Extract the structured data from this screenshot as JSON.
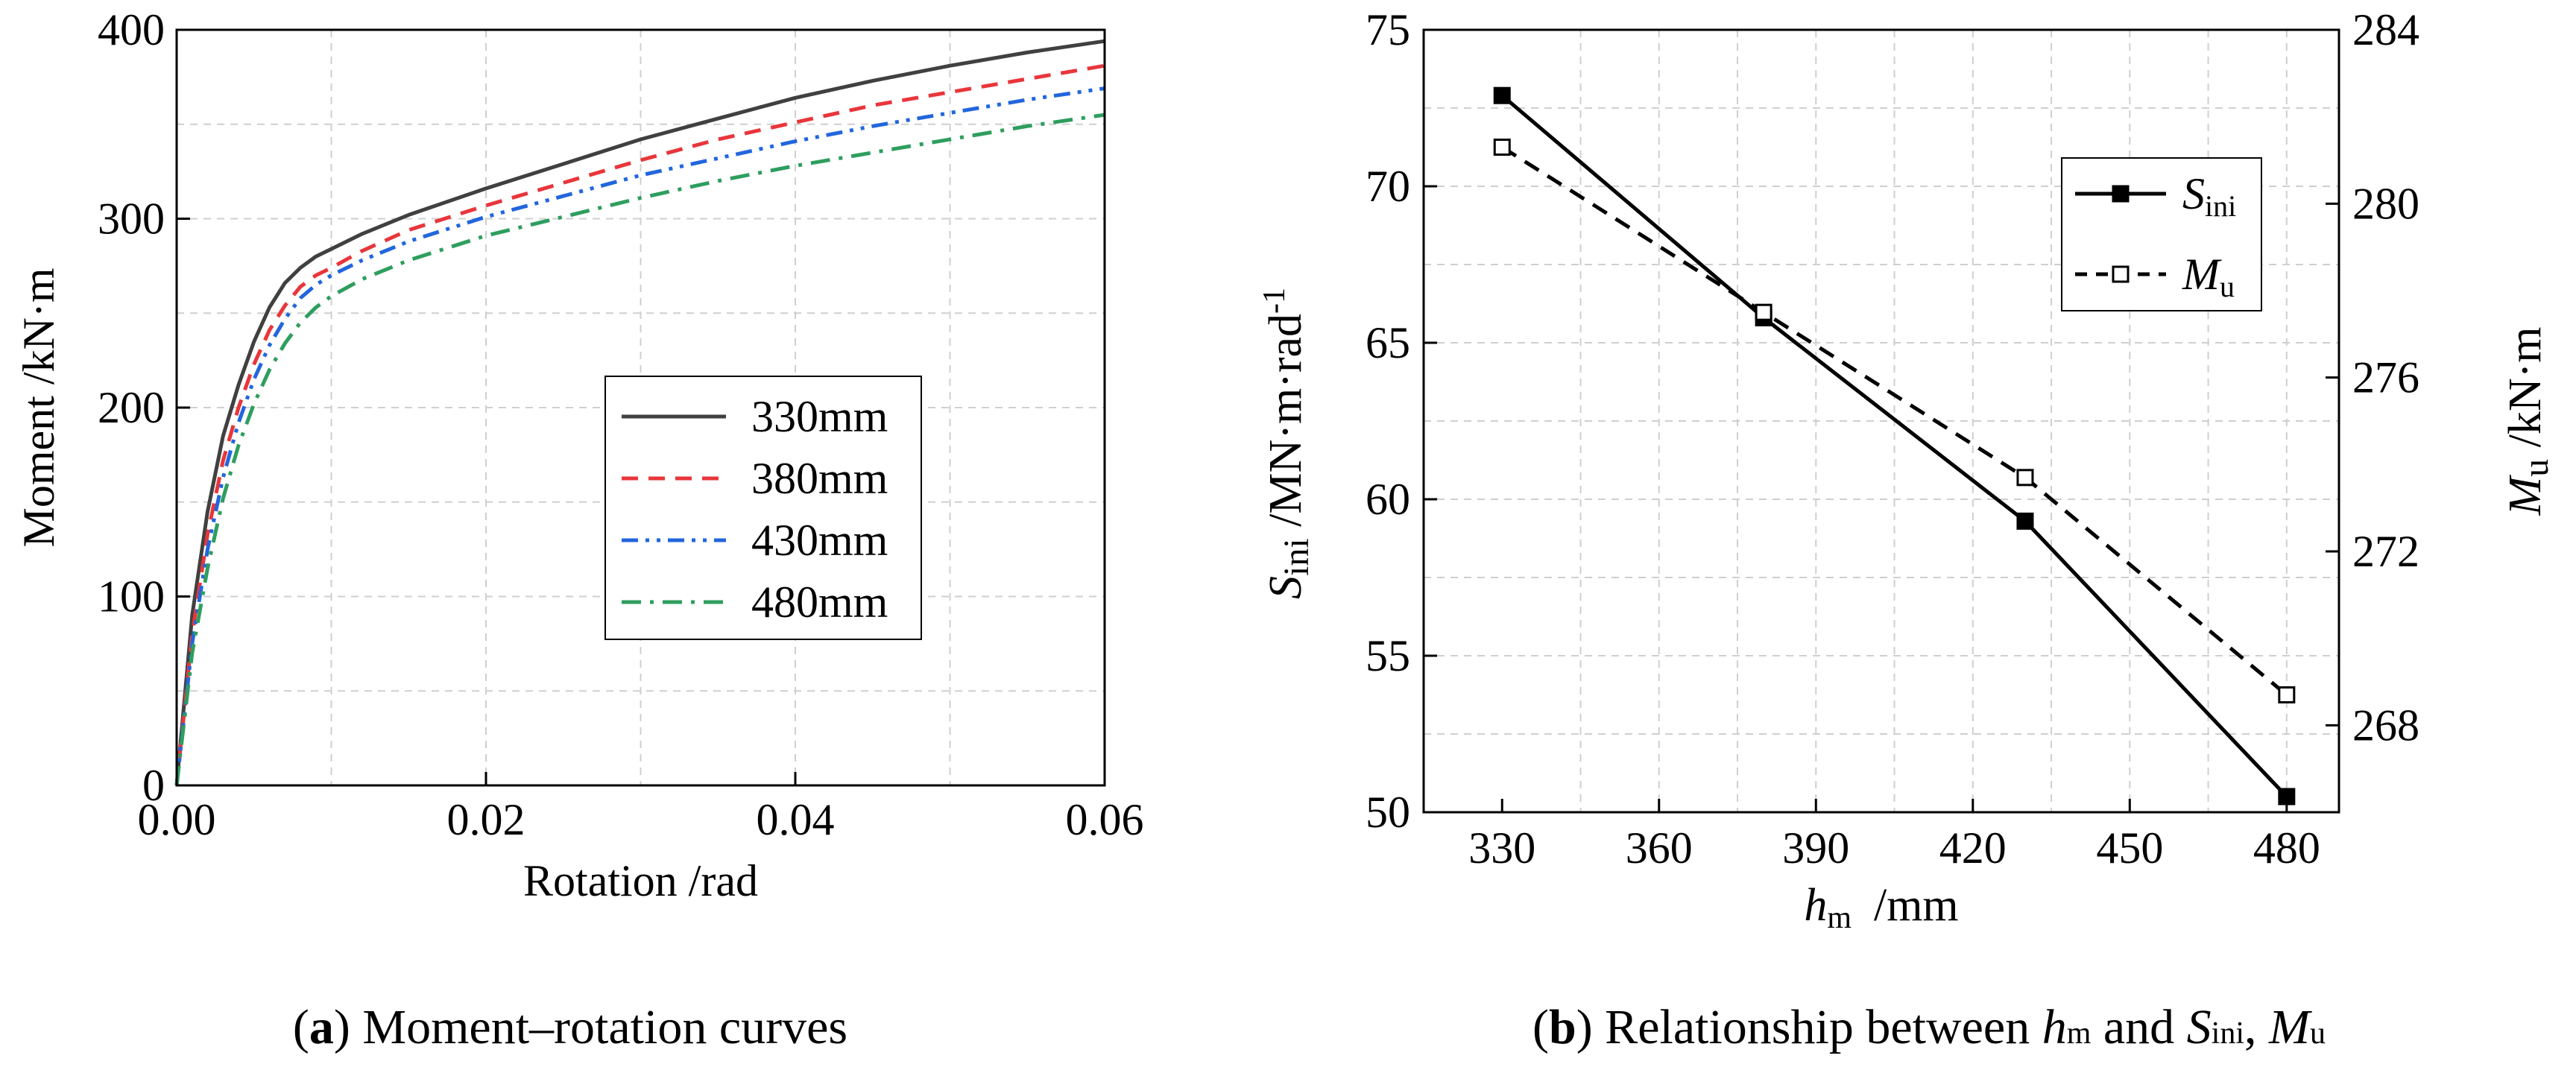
{
  "chart_data": [
    {
      "type": "line",
      "panel_label": "(a)",
      "caption": "Moment–rotation curves",
      "xlabel": "Rotation /rad",
      "ylabel": "Moment /kN·m",
      "xlim": [
        0,
        0.06
      ],
      "ylim": [
        0,
        400
      ],
      "x_ticks": [
        0.0,
        0.02,
        0.04,
        0.06
      ],
      "x_tick_labels": [
        "0.00",
        "0.02",
        "0.04",
        "0.06"
      ],
      "y_ticks": [
        0,
        100,
        200,
        300,
        400
      ],
      "y_tick_labels": [
        "0",
        "100",
        "200",
        "300",
        "400"
      ],
      "grid": true,
      "legend_position": "center-right",
      "series": [
        {
          "name": "330mm",
          "color": "#404040",
          "dash": "solid",
          "x": [
            0,
            0.001,
            0.002,
            0.003,
            0.004,
            0.005,
            0.006,
            0.007,
            0.008,
            0.009,
            0.01,
            0.012,
            0.015,
            0.02,
            0.025,
            0.03,
            0.035,
            0.04,
            0.045,
            0.05,
            0.055,
            0.06
          ],
          "y": [
            0,
            90,
            145,
            185,
            212,
            235,
            253,
            266,
            274,
            280,
            284,
            292,
            302,
            316,
            329,
            342,
            353,
            364,
            373,
            381,
            388,
            394
          ]
        },
        {
          "name": "380mm",
          "color": "#e8363b",
          "dash": "dashed",
          "x": [
            0,
            0.001,
            0.002,
            0.003,
            0.004,
            0.005,
            0.006,
            0.007,
            0.008,
            0.009,
            0.01,
            0.012,
            0.015,
            0.02,
            0.025,
            0.03,
            0.035,
            0.04,
            0.045,
            0.05,
            0.055,
            0.06
          ],
          "y": [
            0,
            80,
            133,
            172,
            200,
            223,
            241,
            254,
            264,
            270,
            274,
            283,
            294,
            307,
            319,
            331,
            342,
            351,
            360,
            367,
            374,
            381
          ]
        },
        {
          "name": "430mm",
          "color": "#2266dd",
          "dash": "dashdotdot",
          "x": [
            0,
            0.001,
            0.002,
            0.003,
            0.004,
            0.005,
            0.006,
            0.007,
            0.008,
            0.009,
            0.01,
            0.012,
            0.015,
            0.02,
            0.025,
            0.03,
            0.035,
            0.04,
            0.045,
            0.05,
            0.055,
            0.06
          ],
          "y": [
            0,
            75,
            125,
            163,
            192,
            215,
            233,
            247,
            258,
            265,
            270,
            278,
            288,
            301,
            312,
            323,
            332,
            341,
            349,
            356,
            363,
            369
          ]
        },
        {
          "name": "480mm",
          "color": "#2e9e5e",
          "dash": "dashdot",
          "x": [
            0,
            0.001,
            0.002,
            0.003,
            0.004,
            0.005,
            0.006,
            0.007,
            0.008,
            0.009,
            0.01,
            0.012,
            0.015,
            0.02,
            0.025,
            0.03,
            0.035,
            0.04,
            0.045,
            0.05,
            0.055,
            0.06
          ],
          "y": [
            0,
            70,
            115,
            152,
            180,
            202,
            220,
            234,
            245,
            253,
            259,
            268,
            278,
            291,
            301,
            311,
            320,
            328,
            335,
            342,
            349,
            355
          ]
        }
      ]
    },
    {
      "type": "line",
      "panel_label": "(b)",
      "caption_prefix": "Relationship between ",
      "caption_h": "h",
      "caption_h_sub": "m",
      "caption_mid": " and ",
      "caption_s": "S",
      "caption_s_sub": "ini",
      "caption_comma": ", ",
      "caption_m": "M",
      "caption_m_sub": "u",
      "xlabel_main": "h",
      "xlabel_sub": "m",
      "xlabel_unit": "/mm",
      "ylabel_left_main": "S",
      "ylabel_left_sub": "ini",
      "ylabel_left_unit": " /MN·m·rad",
      "ylabel_left_sup": "-1",
      "ylabel_right_main": "M",
      "ylabel_right_sub": "u",
      "ylabel_right_unit": " /kN·m",
      "xlim": [
        315,
        490
      ],
      "x_ticks": [
        330,
        360,
        390,
        420,
        450,
        480
      ],
      "x_tick_labels": [
        "330",
        "360",
        "390",
        "420",
        "450",
        "480"
      ],
      "ylim_left": [
        50,
        75
      ],
      "y_left_ticks": [
        50,
        55,
        60,
        65,
        70,
        75
      ],
      "y_left_tick_labels": [
        "50",
        "55",
        "60",
        "65",
        "70",
        "75"
      ],
      "ylim_right": [
        266.0,
        284.0
      ],
      "y_right_ticks": [
        268,
        272,
        276,
        280,
        284
      ],
      "y_right_tick_labels": [
        "268",
        "272",
        "276",
        "280",
        "284"
      ],
      "grid": true,
      "legend_position": "top-right",
      "series": [
        {
          "name": "S",
          "name_sub": "ini",
          "axis": "left",
          "color": "#000000",
          "dash": "solid",
          "marker": "filled-square",
          "x": [
            330,
            380,
            430,
            480
          ],
          "y": [
            72.9,
            65.8,
            59.3,
            50.5
          ]
        },
        {
          "name": "M",
          "name_sub": "u",
          "axis": "right",
          "color": "#000000",
          "dash": "dashed",
          "marker": "open-square",
          "x": [
            330,
            380,
            430,
            480
          ],
          "y": [
            281.3,
            277.5,
            273.7,
            268.7
          ]
        }
      ]
    }
  ]
}
